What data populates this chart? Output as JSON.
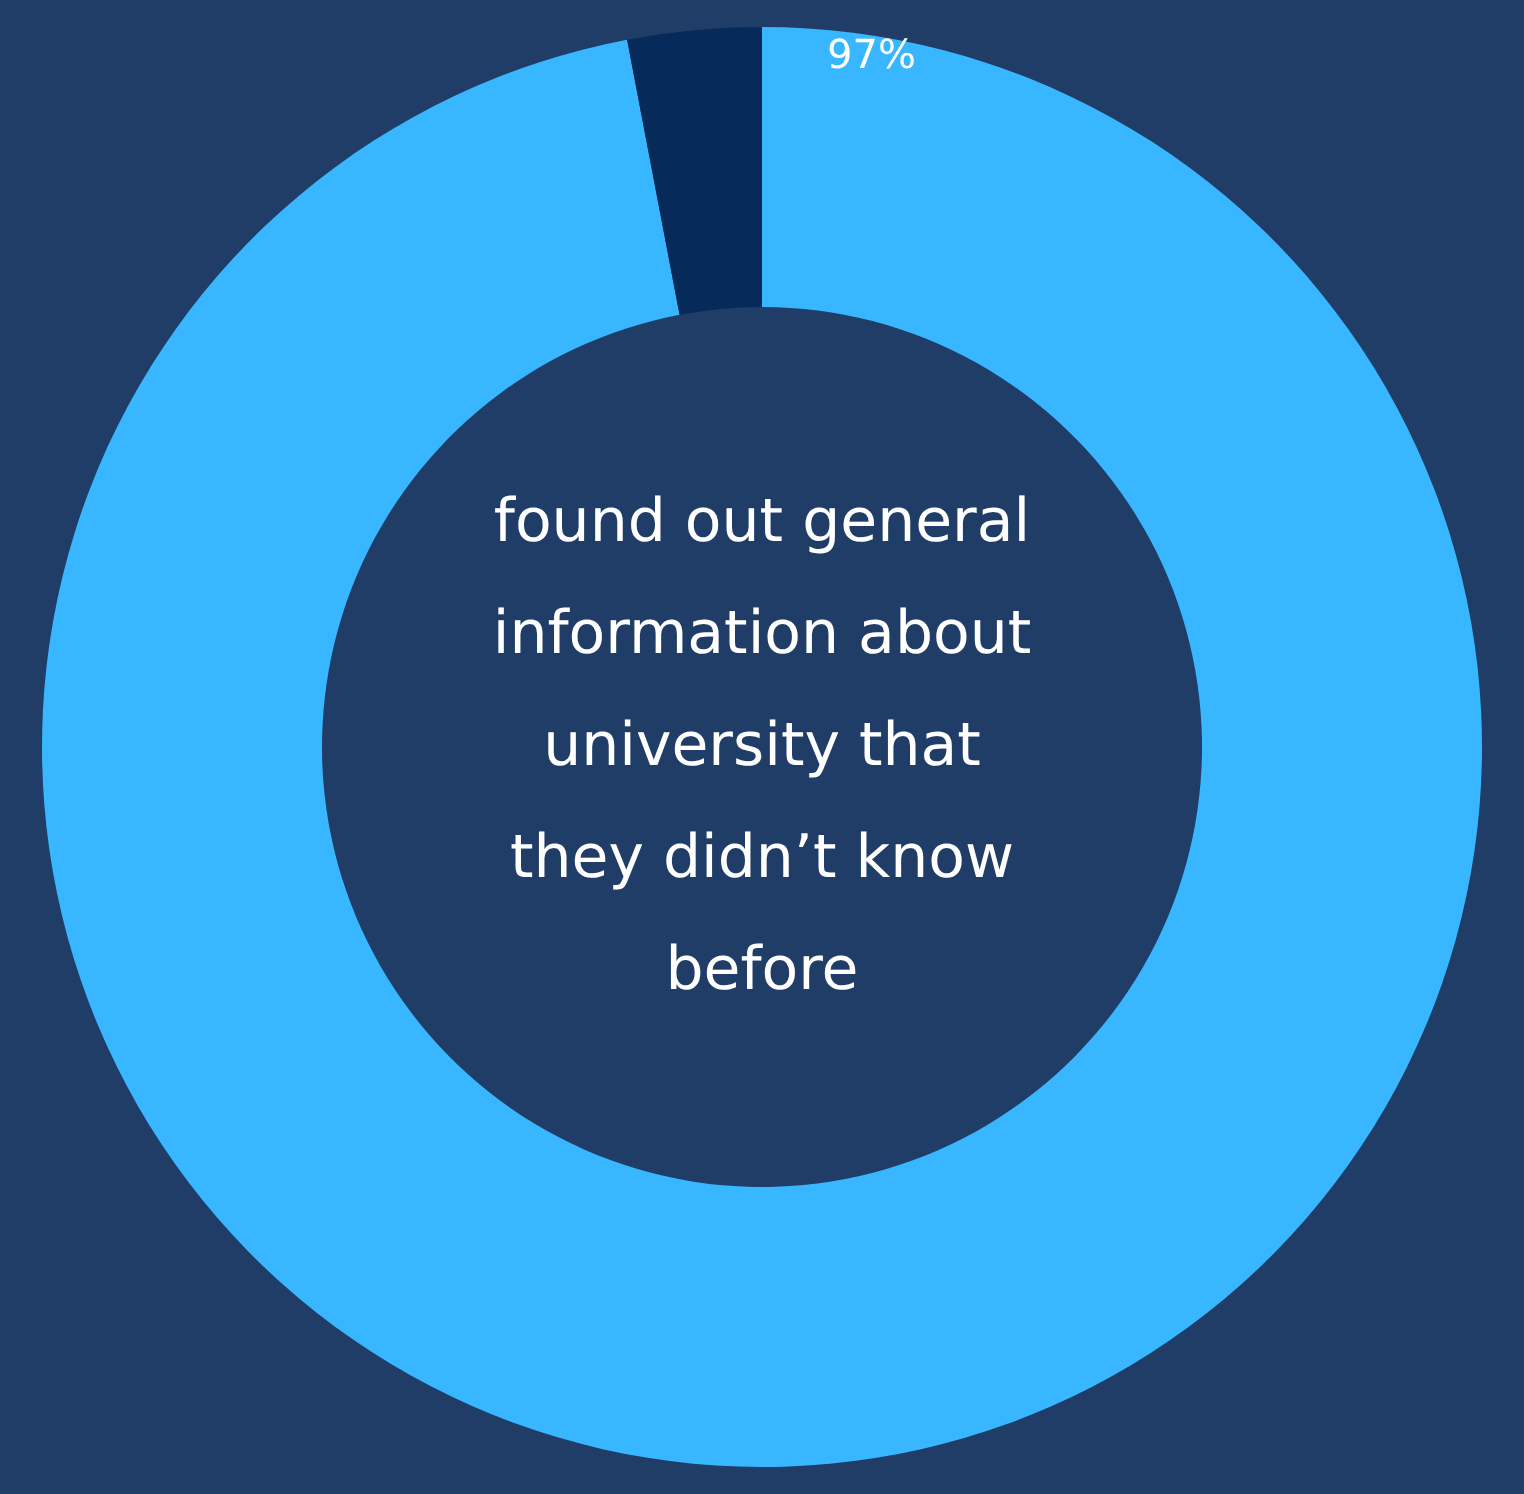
{
  "chart_data": {
    "type": "donut",
    "title": "found out general information about university that they didn’t know before",
    "categories": [
      null,
      null
    ],
    "values": [
      97,
      3
    ],
    "colors": [
      "#38b6ff",
      "#062a5a"
    ],
    "value_labels": [
      "97%",
      null
    ],
    "legend": false
  }
}
